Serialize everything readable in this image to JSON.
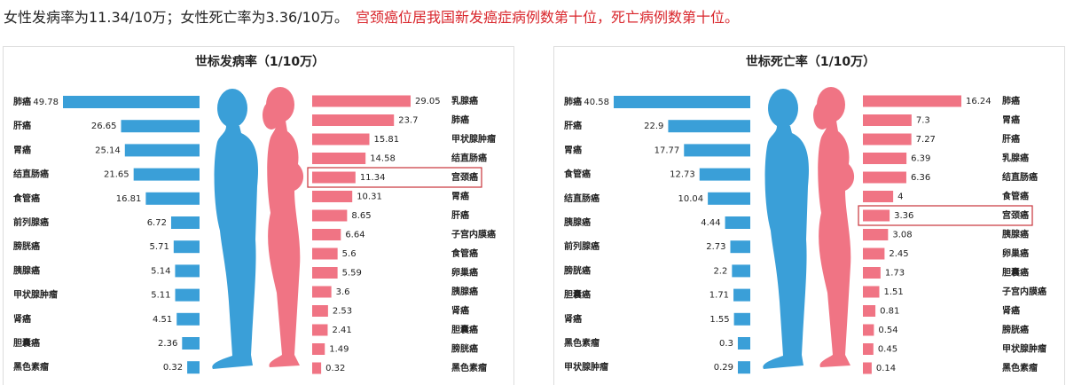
{
  "header": {
    "text": "女性发病率为11.34/10万；女性死亡率为3.36/10万。",
    "highlight": "宫颈癌位居我国新发癌症病例数第十位，死亡病例数第十位。"
  },
  "chart_data": [
    {
      "type": "mirrored-bar",
      "title": "世标发病率（1/10万）",
      "left": {
        "color": "#3a9fd8",
        "categories": [
          "肺癌",
          "肝癌",
          "胃癌",
          "结直肠癌",
          "食管癌",
          "前列腺癌",
          "膀胱癌",
          "胰腺癌",
          "甲状腺肿瘤",
          "肾癌",
          "胆囊癌",
          "黑色素瘤"
        ],
        "values": [
          49.78,
          26.65,
          25.14,
          21.65,
          16.81,
          6.72,
          5.71,
          5.14,
          5.11,
          4.51,
          2.36,
          0.32
        ]
      },
      "right": {
        "color": "#f07484",
        "highlight": 4,
        "categories": [
          "乳腺癌",
          "肺癌",
          "甲状腺肿瘤",
          "结直肠癌",
          "宫颈癌",
          "胃癌",
          "肝癌",
          "子宫内膜癌",
          "食管癌",
          "卵巢癌",
          "胰腺癌",
          "肾癌",
          "胆囊癌",
          "膀胱癌",
          "黑色素瘤"
        ],
        "values": [
          29.05,
          23.7,
          15.81,
          14.58,
          11.34,
          10.31,
          8.65,
          6.64,
          5.6,
          5.59,
          3.6,
          2.53,
          2.41,
          1.49,
          0.32
        ]
      }
    },
    {
      "type": "mirrored-bar",
      "title": "世标死亡率（1/10万）",
      "left": {
        "color": "#3a9fd8",
        "categories": [
          "肺癌",
          "肝癌",
          "胃癌",
          "食管癌",
          "结直肠癌",
          "胰腺癌",
          "前列腺癌",
          "膀胱癌",
          "胆囊癌",
          "肾癌",
          "黑色素瘤",
          "甲状腺肿瘤"
        ],
        "values": [
          40.58,
          22.9,
          17.77,
          12.73,
          10.04,
          4.44,
          2.73,
          2.2,
          1.71,
          1.55,
          0.3,
          0.29
        ]
      },
      "right": {
        "color": "#f07484",
        "highlight": 6,
        "categories": [
          "肺癌",
          "胃癌",
          "肝癌",
          "乳腺癌",
          "结直肠癌",
          "食管癌",
          "宫颈癌",
          "胰腺癌",
          "卵巢癌",
          "胆囊癌",
          "子宫内膜癌",
          "肾癌",
          "膀胱癌",
          "甲状腺肿瘤",
          "黑色素瘤"
        ],
        "values": [
          16.24,
          7.3,
          7.27,
          6.39,
          6.36,
          4,
          3.36,
          3.08,
          2.45,
          1.73,
          1.51,
          0.81,
          0.54,
          0.45,
          0.14
        ]
      }
    }
  ]
}
